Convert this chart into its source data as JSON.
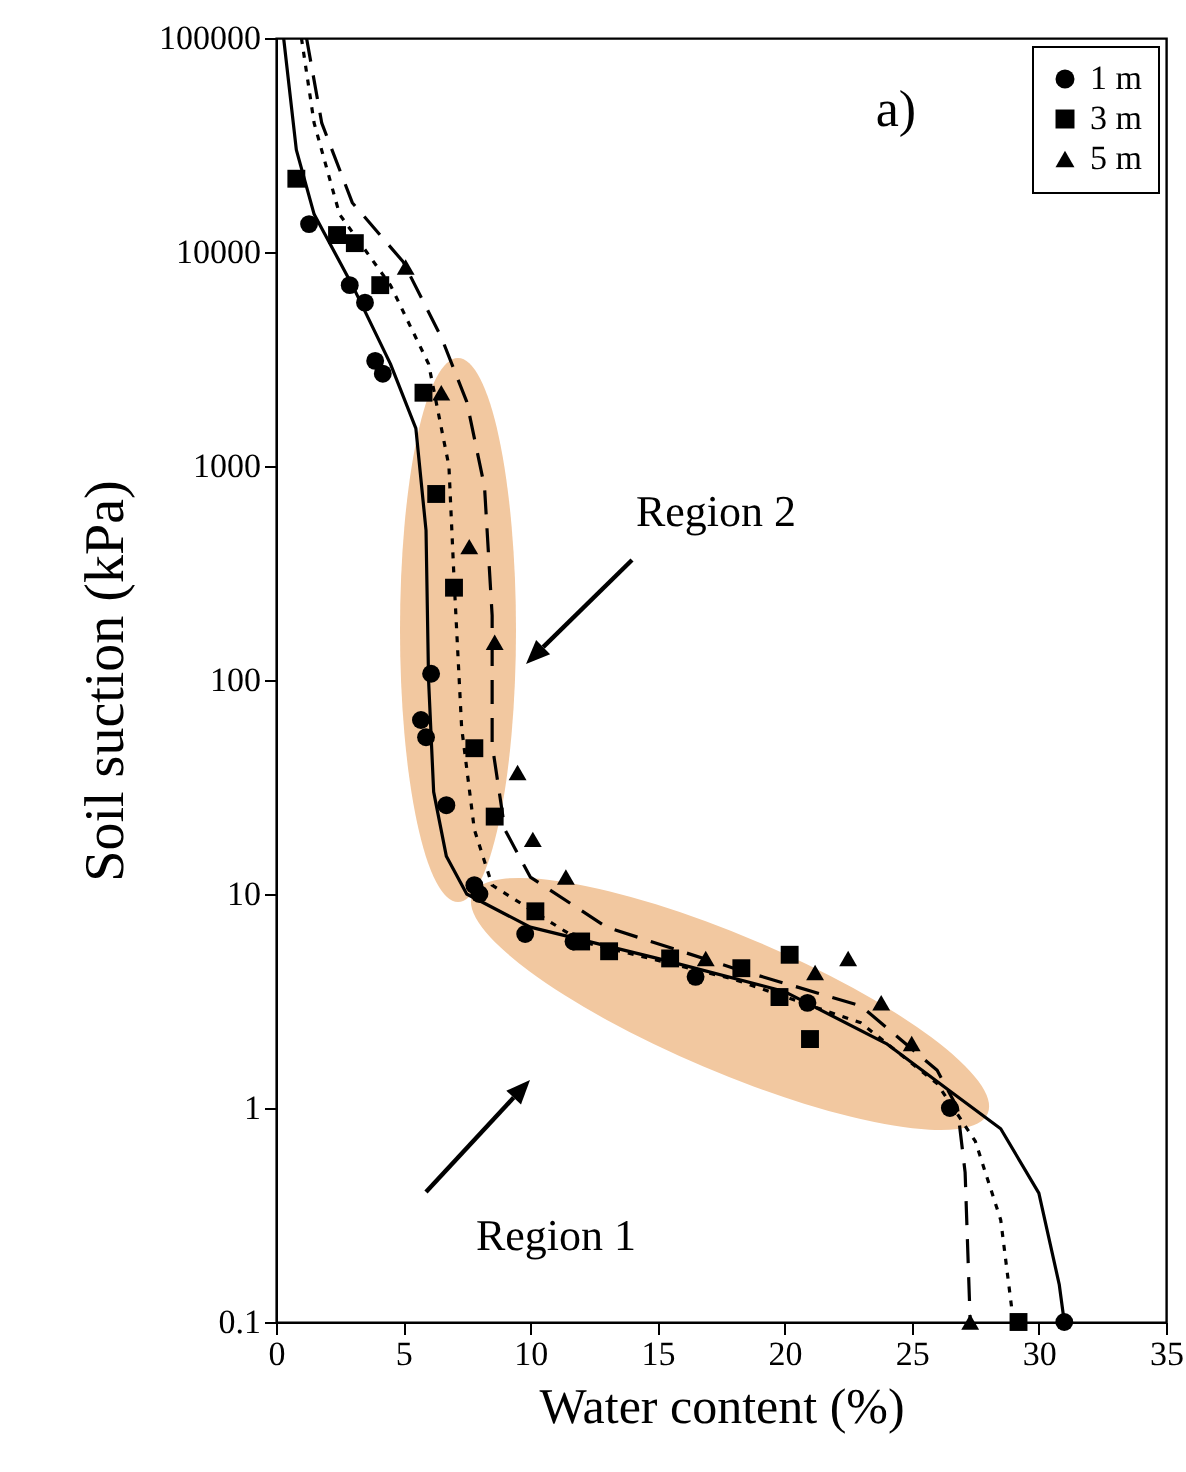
{
  "chart_data": {
    "type": "scatter",
    "xlabel": "Water content (%)",
    "ylabel": "Soil suction (kPa)",
    "log": "y",
    "legend": "top right",
    "annotations": [
      "a)",
      "Region 2",
      "Region 1"
    ],
    "xlim": [
      0,
      35
    ],
    "xticks": [
      0,
      5,
      10,
      15,
      20,
      25,
      30,
      35
    ],
    "ylim": [
      0.1,
      100000
    ],
    "yticks": [
      0.1,
      1,
      10,
      100,
      1000,
      10000,
      100000
    ],
    "series": [
      {
        "name": "1 m",
        "marker": "circle",
        "color": "#000000",
        "x": [
          1.3,
          2.9,
          3.5,
          3.9,
          4.2,
          6.1,
          5.7,
          5.9,
          6.7,
          7.8,
          8.0,
          9.8,
          11.7,
          16.5,
          20.9,
          26.5,
          31
        ],
        "values": [
          13500,
          7000,
          5800,
          3100,
          2700,
          107,
          65,
          54,
          26,
          11,
          10,
          6.5,
          6,
          4.1,
          3.1,
          1,
          0.1
        ]
      },
      {
        "name": "3 m",
        "marker": "square",
        "color": "#000000",
        "x": [
          0.8,
          2.4,
          3.1,
          4.1,
          5.8,
          6.3,
          7.0,
          7.8,
          8.6,
          10.2,
          12.0,
          13.1,
          15.5,
          18.3,
          20.2,
          19.8,
          21.0,
          29.2
        ],
        "values": [
          22000,
          12000,
          11000,
          7000,
          2200,
          740,
          270,
          48,
          23,
          8.3,
          6,
          5.4,
          5,
          4.5,
          5.2,
          3.3,
          2.1,
          0.1
        ]
      },
      {
        "name": "5 m",
        "marker": "triangle",
        "color": "#000000",
        "x": [
          5.1,
          6.5,
          7.6,
          8.6,
          9.5,
          10.1,
          11.4,
          16.9,
          21.2,
          22.5,
          23.8,
          25.0,
          27.3
        ],
        "values": [
          8500,
          2200,
          420,
          150,
          37,
          18,
          12,
          5,
          4.3,
          5,
          3.1,
          2,
          0.1
        ]
      },
      {
        "type": "line",
        "line_style": "solid",
        "color": "#000000",
        "x": [
          0.3,
          0.8,
          1.5,
          3,
          4.5,
          5.5,
          5.9,
          6,
          6.2,
          6.7,
          7.5,
          10,
          15,
          20,
          24,
          26.5,
          28.5,
          30,
          30.8,
          31
        ],
        "values": [
          100000,
          30000,
          15000,
          7000,
          3000,
          1500,
          500,
          100,
          30,
          15,
          10,
          7,
          5,
          3.5,
          2,
          1.2,
          0.8,
          0.4,
          0.15,
          0.1
        ]
      },
      {
        "type": "line",
        "line_style": "dotted",
        "color": "#000000",
        "x": [
          1.0,
          1.5,
          2.5,
          4.5,
          6,
          6.8,
          7,
          7.3,
          7.8,
          8.5,
          12,
          18,
          23,
          26,
          27.5,
          28.5,
          29
        ],
        "values": [
          100000,
          40000,
          15000,
          7000,
          3000,
          1000,
          300,
          60,
          20,
          11,
          6,
          4,
          2.5,
          1.3,
          0.7,
          0.3,
          0.1
        ]
      },
      {
        "type": "line",
        "line_style": "dashed",
        "color": "#000000",
        "x": [
          1.2,
          1.8,
          3,
          5,
          6.5,
          7.5,
          8.2,
          8.5,
          8.5,
          9,
          10,
          13,
          18,
          23,
          26,
          26.8,
          27.1,
          27.3
        ],
        "values": [
          100000,
          40000,
          17000,
          9000,
          4000,
          2000,
          800,
          200,
          50,
          20,
          12,
          7,
          4.5,
          3,
          1.5,
          1,
          0.5,
          0.1
        ]
      }
    ]
  }
}
